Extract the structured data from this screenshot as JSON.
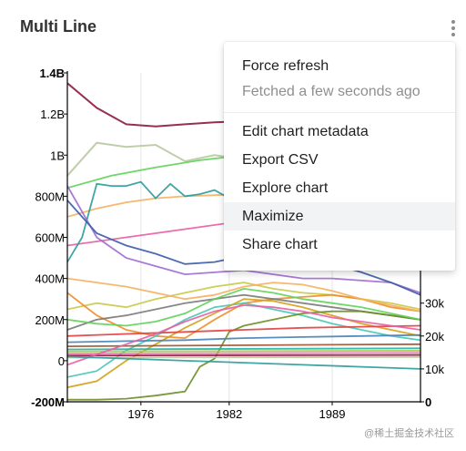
{
  "header": {
    "title": "Multi Line"
  },
  "menu": {
    "items": [
      {
        "label": "Force refresh"
      },
      {
        "label": "Fetched a few seconds ago"
      },
      {
        "label": "Edit chart metadata"
      },
      {
        "label": "Export CSV"
      },
      {
        "label": "Explore chart"
      },
      {
        "label": "Maximize"
      },
      {
        "label": "Share chart"
      }
    ]
  },
  "watermark": "@稀土掘金技术社区",
  "chart_data": {
    "type": "line",
    "left_axis": {
      "tick_labels": [
        "1.4B",
        "1.2B",
        "1B",
        "800M",
        "600M",
        "400M",
        "200M",
        "0",
        "-200M"
      ],
      "range": [
        -200000000,
        1400000000
      ]
    },
    "right_axis": {
      "tick_labels": [
        "30k",
        "20k",
        "10k",
        "0"
      ],
      "range": [
        0,
        100000
      ]
    },
    "x_axis": {
      "tick_labels": [
        "1976",
        "1982",
        "1989"
      ],
      "range": [
        1971,
        1995
      ]
    },
    "colors": [
      "#8b1a3c",
      "#b8c9a0",
      "#5fd35a",
      "#f5b05e",
      "#e85ea5",
      "#2a9b9b",
      "#9e6bd1",
      "#3b5ba8",
      "#c9c94a",
      "#f28c28",
      "#7a7a7a",
      "#49c5b6",
      "#d4a017",
      "#6b8e23",
      "#e04040",
      "#4682b4",
      "#a0522d",
      "#20b2aa",
      "#9acd32",
      "#ff69b4"
    ],
    "series": [
      {
        "axis": "left",
        "x": [
          1971,
          1973,
          1975,
          1977,
          1979,
          1981,
          1983,
          1985
        ],
        "y": [
          1350000000,
          1230000000,
          1150000000,
          1140000000,
          1150000000,
          1160000000,
          1165000000,
          1160000000
        ]
      },
      {
        "axis": "left",
        "x": [
          1971,
          1973,
          1975,
          1977,
          1979,
          1981,
          1983,
          1985
        ],
        "y": [
          900000000,
          1060000000,
          1040000000,
          1050000000,
          970000000,
          1000000000,
          980000000,
          990000000
        ]
      },
      {
        "axis": "left",
        "x": [
          1971,
          1974,
          1977,
          1980,
          1983,
          1985
        ],
        "y": [
          840000000,
          900000000,
          940000000,
          975000000,
          1000000000,
          1010000000
        ]
      },
      {
        "axis": "left",
        "x": [
          1971,
          1973,
          1975,
          1977,
          1979,
          1981,
          1983,
          1985
        ],
        "y": [
          700000000,
          740000000,
          770000000,
          790000000,
          800000000,
          805000000,
          810000000,
          810000000
        ]
      },
      {
        "axis": "left",
        "x": [
          1971,
          1975,
          1979,
          1983,
          1987,
          1991,
          1995
        ],
        "y": [
          560000000,
          600000000,
          640000000,
          680000000,
          720000000,
          740000000,
          750000000
        ]
      },
      {
        "axis": "left",
        "x": [
          1971,
          1972,
          1973,
          1974,
          1975,
          1976,
          1977,
          1978,
          1979,
          1980,
          1981,
          1982,
          1983,
          1984,
          1985
        ],
        "y": [
          480000000,
          600000000,
          860000000,
          850000000,
          850000000,
          870000000,
          790000000,
          860000000,
          800000000,
          810000000,
          830000000,
          790000000,
          810000000,
          800000000,
          790000000
        ]
      },
      {
        "axis": "left",
        "x": [
          1971,
          1973,
          1975,
          1977,
          1979,
          1981,
          1983,
          1985,
          1987,
          1989,
          1991,
          1993,
          1995
        ],
        "y": [
          850000000,
          600000000,
          500000000,
          460000000,
          420000000,
          430000000,
          440000000,
          420000000,
          400000000,
          400000000,
          390000000,
          380000000,
          330000000
        ]
      },
      {
        "axis": "left",
        "x": [
          1971,
          1973,
          1975,
          1977,
          1979,
          1981,
          1983,
          1985,
          1987,
          1989,
          1991,
          1993,
          1995
        ],
        "y": [
          780000000,
          620000000,
          560000000,
          520000000,
          470000000,
          480000000,
          510000000,
          500000000,
          490000000,
          470000000,
          430000000,
          380000000,
          320000000
        ]
      },
      {
        "axis": "left",
        "x": [
          1971,
          1973,
          1975,
          1977,
          1979,
          1981,
          1983,
          1985,
          1987,
          1989,
          1991,
          1993,
          1995
        ],
        "y": [
          250000000,
          280000000,
          260000000,
          300000000,
          330000000,
          360000000,
          380000000,
          350000000,
          330000000,
          320000000,
          300000000,
          280000000,
          250000000
        ]
      },
      {
        "axis": "left",
        "x": [
          1971,
          1973,
          1975,
          1977,
          1979,
          1981,
          1983,
          1985,
          1987,
          1989,
          1991,
          1993,
          1995
        ],
        "y": [
          330000000,
          220000000,
          150000000,
          120000000,
          110000000,
          200000000,
          280000000,
          300000000,
          310000000,
          320000000,
          300000000,
          260000000,
          240000000
        ]
      },
      {
        "axis": "left",
        "x": [
          1971,
          1973,
          1975,
          1977,
          1979,
          1981,
          1983,
          1985,
          1987,
          1989,
          1991,
          1993,
          1995
        ],
        "y": [
          150000000,
          200000000,
          220000000,
          250000000,
          280000000,
          300000000,
          320000000,
          300000000,
          280000000,
          260000000,
          240000000,
          220000000,
          200000000
        ]
      },
      {
        "axis": "left",
        "x": [
          1971,
          1973,
          1975,
          1977,
          1979,
          1981,
          1983,
          1985,
          1987,
          1989,
          1991,
          1993,
          1995
        ],
        "y": [
          -80000000,
          -50000000,
          50000000,
          120000000,
          200000000,
          260000000,
          280000000,
          250000000,
          220000000,
          180000000,
          150000000,
          120000000,
          100000000
        ]
      },
      {
        "axis": "left",
        "x": [
          1971,
          1973,
          1975,
          1977,
          1979,
          1981,
          1983,
          1985,
          1987,
          1989,
          1991,
          1993,
          1995
        ],
        "y": [
          -130000000,
          -100000000,
          0,
          80000000,
          160000000,
          230000000,
          300000000,
          290000000,
          260000000,
          220000000,
          180000000,
          150000000,
          120000000
        ]
      },
      {
        "axis": "left",
        "x": [
          1971,
          1973,
          1975,
          1977,
          1979,
          1980,
          1981,
          1982,
          1983,
          1985,
          1987,
          1989,
          1991,
          1993,
          1995
        ],
        "y": [
          -190000000,
          -190000000,
          -185000000,
          -170000000,
          -150000000,
          -30000000,
          10000000,
          140000000,
          170000000,
          200000000,
          230000000,
          240000000,
          240000000,
          220000000,
          200000000
        ]
      },
      {
        "axis": "left",
        "x": [
          1971,
          1975,
          1979,
          1983,
          1987,
          1991,
          1995
        ],
        "y": [
          120000000,
          130000000,
          140000000,
          150000000,
          160000000,
          165000000,
          170000000
        ]
      },
      {
        "axis": "left",
        "x": [
          1971,
          1975,
          1979,
          1983,
          1987,
          1991,
          1995
        ],
        "y": [
          90000000,
          95000000,
          100000000,
          110000000,
          115000000,
          120000000,
          125000000
        ]
      },
      {
        "axis": "left",
        "x": [
          1971,
          1995
        ],
        "y": [
          70000000,
          80000000
        ]
      },
      {
        "axis": "left",
        "x": [
          1971,
          1995
        ],
        "y": [
          55000000,
          60000000
        ]
      },
      {
        "axis": "left",
        "x": [
          1971,
          1995
        ],
        "y": [
          45000000,
          48000000
        ]
      },
      {
        "axis": "left",
        "x": [
          1971,
          1995
        ],
        "y": [
          35000000,
          38000000
        ]
      },
      {
        "axis": "left",
        "x": [
          1971,
          1995
        ],
        "y": [
          25000000,
          28000000
        ]
      },
      {
        "axis": "left",
        "x": [
          1971,
          1995
        ],
        "y": [
          15000000,
          18000000
        ]
      },
      {
        "axis": "left",
        "x": [
          1971,
          1973,
          1975,
          1977,
          1979,
          1981,
          1983,
          1985,
          1987,
          1989,
          1991,
          1993,
          1995
        ],
        "y": [
          200000000,
          180000000,
          170000000,
          190000000,
          230000000,
          300000000,
          350000000,
          330000000,
          300000000,
          280000000,
          260000000,
          230000000,
          200000000
        ]
      },
      {
        "axis": "left",
        "x": [
          1971,
          1973,
          1975,
          1977,
          1979,
          1981,
          1983,
          1985,
          1987,
          1989,
          1991,
          1993,
          1995
        ],
        "y": [
          400000000,
          380000000,
          360000000,
          330000000,
          300000000,
          320000000,
          360000000,
          380000000,
          370000000,
          340000000,
          300000000,
          270000000,
          240000000
        ]
      },
      {
        "axis": "left",
        "x": [
          1971,
          1973,
          1975,
          1977,
          1979,
          1981,
          1983,
          1985,
          1987,
          1989,
          1991,
          1993,
          1995
        ],
        "y": [
          -20000000,
          30000000,
          80000000,
          130000000,
          190000000,
          240000000,
          270000000,
          260000000,
          240000000,
          210000000,
          190000000,
          170000000,
          150000000
        ]
      },
      {
        "axis": "left",
        "x": [
          1971,
          1975,
          1979,
          1983,
          1987,
          1991,
          1995
        ],
        "y": [
          20000000,
          10000000,
          0,
          -10000000,
          -20000000,
          -30000000,
          -40000000
        ]
      }
    ]
  }
}
